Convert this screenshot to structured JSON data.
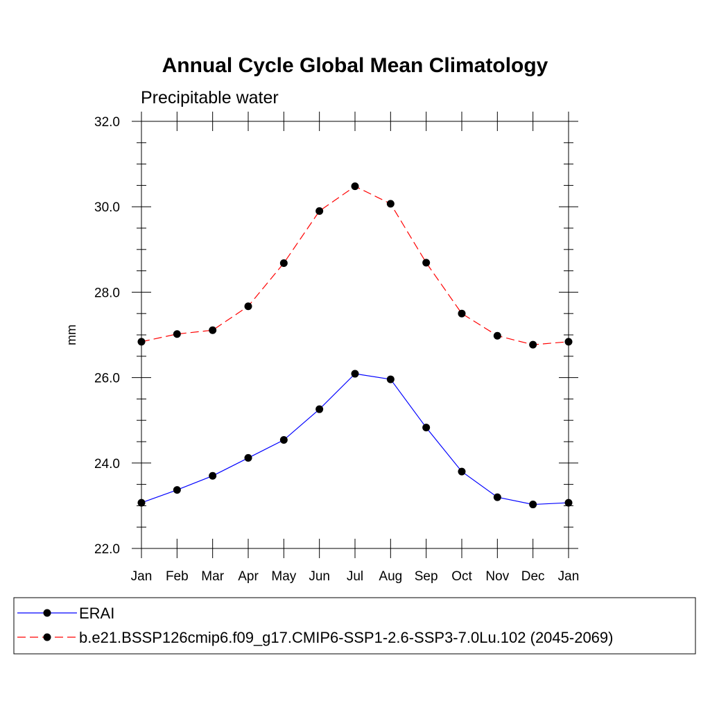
{
  "chart_data": {
    "type": "line",
    "title": "Annual Cycle Global Mean Climatology",
    "subtitle": "Precipitable water",
    "xlabel": "",
    "ylabel": "mm",
    "categories": [
      "Jan",
      "Feb",
      "Mar",
      "Apr",
      "May",
      "Jun",
      "Jul",
      "Aug",
      "Sep",
      "Oct",
      "Nov",
      "Dec",
      "Jan"
    ],
    "ylim": [
      22.0,
      32.0
    ],
    "yticks": [
      "22.0",
      "24.0",
      "26.0",
      "28.0",
      "30.0",
      "32.0"
    ],
    "grid": false,
    "legend_position": "bottom",
    "series": [
      {
        "name": "ERAI",
        "color": "#0000ff",
        "dash": "solid",
        "marker": "filled-circle",
        "values": [
          23.07,
          23.37,
          23.7,
          24.12,
          24.54,
          25.26,
          26.09,
          25.96,
          24.83,
          23.8,
          23.2,
          23.03,
          23.07
        ]
      },
      {
        "name": "b.e21.BSSP126cmip6.f09_g17.CMIP6-SSP1-2.6-SSP3-7.0Lu.102 (2045-2069)",
        "color": "#ff0000",
        "dash": "dashed",
        "marker": "filled-circle",
        "values": [
          26.84,
          27.02,
          27.11,
          27.67,
          28.68,
          29.9,
          30.48,
          30.07,
          28.69,
          27.5,
          26.98,
          26.77,
          26.84
        ]
      }
    ]
  }
}
